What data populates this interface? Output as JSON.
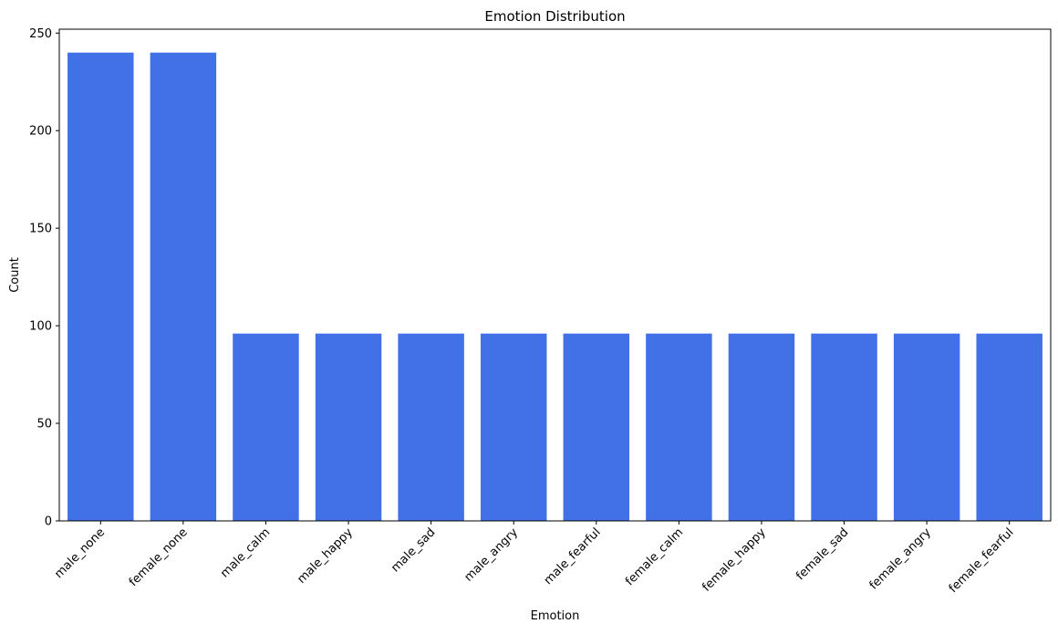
{
  "chart_data": {
    "type": "bar",
    "title": "Emotion Distribution",
    "xlabel": "Emotion",
    "ylabel": "Count",
    "categories": [
      "male_none",
      "female_none",
      "male_calm",
      "male_happy",
      "male_sad",
      "male_angry",
      "male_fearful",
      "female_calm",
      "female_happy",
      "female_sad",
      "female_angry",
      "female_fearful"
    ],
    "values": [
      240,
      240,
      96,
      96,
      96,
      96,
      96,
      96,
      96,
      96,
      96,
      96
    ],
    "ylim": [
      0,
      252
    ],
    "yticks": [
      0,
      50,
      100,
      150,
      200,
      250
    ],
    "grid": false,
    "bar_color": "#4270e6"
  }
}
